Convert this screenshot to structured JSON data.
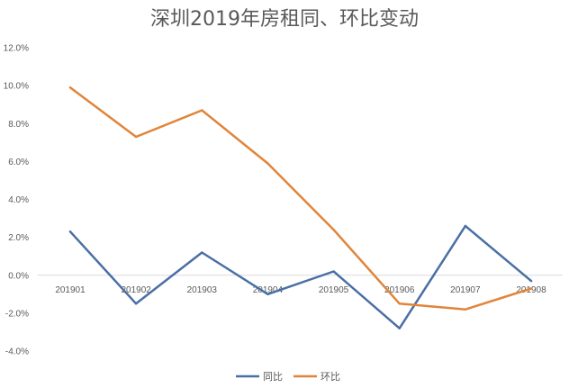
{
  "chart_data": {
    "type": "line",
    "title": "深圳2019年房租同、环比变动",
    "categories": [
      "201901",
      "201902",
      "201903",
      "201904",
      "201905",
      "201906",
      "201907",
      "201908"
    ],
    "ylim": [
      -4,
      12
    ],
    "y_ticks": [
      "12.0%",
      "10.0%",
      "8.0%",
      "6.0%",
      "4.0%",
      "2.0%",
      "0.0%",
      "-2.0%",
      "-4.0%"
    ],
    "y_tick_values": [
      12,
      10,
      8,
      6,
      4,
      2,
      0,
      -2,
      -4
    ],
    "y_unit": "%",
    "grid": false,
    "legend_position": "bottom",
    "series": [
      {
        "name": "同比",
        "color": "#4a6fa5",
        "values": [
          2.3,
          -1.5,
          1.2,
          -1.0,
          0.2,
          -2.8,
          2.6,
          -0.3
        ]
      },
      {
        "name": "环比",
        "color": "#e0853a",
        "values": [
          9.9,
          7.3,
          8.7,
          5.9,
          2.4,
          -1.5,
          -1.8,
          -0.7
        ]
      }
    ]
  }
}
